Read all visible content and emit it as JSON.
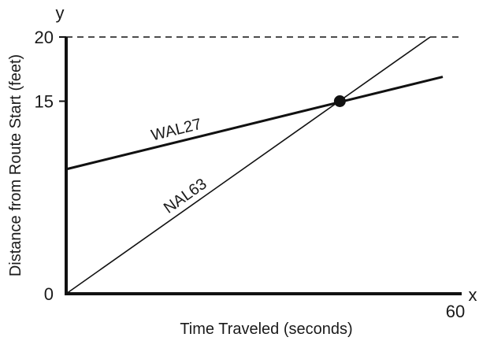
{
  "chart_data": {
    "type": "line",
    "xlabel": "Time Traveled (seconds)",
    "ylabel": "Distance from Route Start (feet)",
    "x_axis_letter": "x",
    "y_axis_letter": "y",
    "xlim": [
      0,
      60
    ],
    "ylim": [
      0,
      20
    ],
    "x_ticks": [
      {
        "value": 60,
        "label": "60"
      }
    ],
    "y_ticks": [
      {
        "value": 0,
        "label": "0"
      },
      {
        "value": 15,
        "label": "15"
      },
      {
        "value": 20,
        "label": "20"
      }
    ],
    "reference_lines": [
      {
        "axis": "y",
        "value": 20,
        "style": "dashed"
      }
    ],
    "series": [
      {
        "name": "WAL27",
        "x": [
          0,
          60
        ],
        "y": [
          9.7,
          16.9
        ],
        "color": "#111111",
        "line_weight": "heavy"
      },
      {
        "name": "NAL63",
        "x": [
          0,
          58
        ],
        "y": [
          0,
          20
        ],
        "color": "#111111",
        "line_weight": "light"
      }
    ],
    "points": [
      {
        "x": 43.6,
        "y": 15,
        "label": ""
      }
    ],
    "grid": false,
    "legend": "none (series labeled along lines)"
  }
}
